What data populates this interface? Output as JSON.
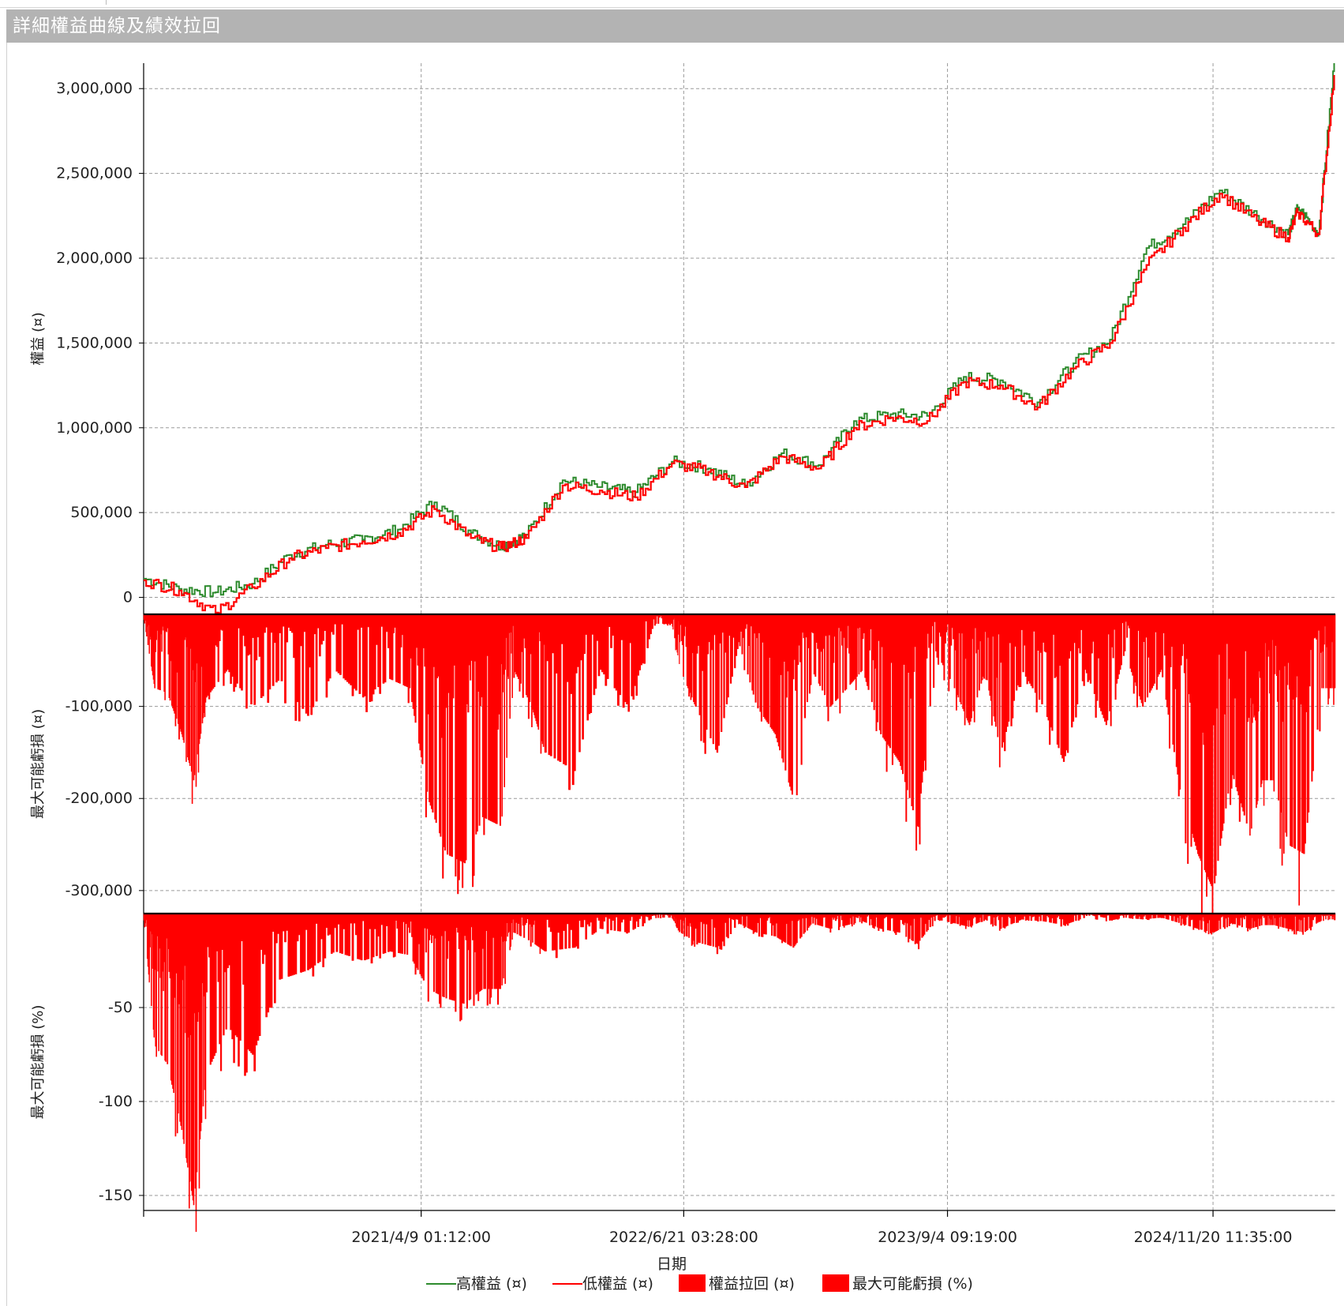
{
  "window": {
    "title": "詳細權益曲線及績效拉回"
  },
  "colors": {
    "high_equity": "#2e8b2e",
    "low_equity": "#ff0000",
    "drawdown_fill": "#ff0000",
    "grid": "#9a9a9a",
    "title_bg": "#b3b3b3"
  },
  "chart_data": [
    {
      "type": "line",
      "panel": "equity",
      "ylabel": "權益 (¤)",
      "ylim": [
        -100000,
        3150000
      ],
      "yticks": [
        0,
        500000,
        1000000,
        1500000,
        2000000,
        2500000,
        3000000
      ],
      "ytick_labels": [
        "0",
        "500,000",
        "1,000,000",
        "1,500,000",
        "2,000,000",
        "2,500,000",
        "3,000,000"
      ],
      "x": [
        "2020-01-02",
        "2020-03-01",
        "2020-05-01",
        "2020-07-01",
        "2020-09-01",
        "2020-11-01",
        "2021-01-01",
        "2021-03-01",
        "2021-05-01",
        "2021-07-01",
        "2021-08-20",
        "2021-10-01",
        "2021-12-01",
        "2022-02-01",
        "2022-04-01",
        "2022-06-01",
        "2022-08-01",
        "2022-10-01",
        "2022-12-01",
        "2023-02-01",
        "2023-04-01",
        "2023-06-01",
        "2023-08-01",
        "2023-10-01",
        "2023-12-01",
        "2024-02-01",
        "2024-04-01",
        "2024-06-01",
        "2024-08-01",
        "2024-10-01",
        "2024-12-01",
        "2025-02-01",
        "2025-03-25",
        "2025-04-10",
        "2025-05-15",
        "2025-06-10"
      ],
      "series": [
        {
          "name": "高權益 (¤)",
          "values": [
            110000,
            50000,
            30000,
            80000,
            250000,
            310000,
            340000,
            400000,
            560000,
            380000,
            300000,
            370000,
            690000,
            650000,
            620000,
            800000,
            760000,
            660000,
            850000,
            780000,
            1040000,
            1080000,
            1070000,
            1300000,
            1280000,
            1150000,
            1380000,
            1520000,
            2060000,
            2200000,
            2400000,
            2250000,
            2140000,
            2300000,
            2150000,
            3150000
          ]
        },
        {
          "name": "低權益 (¤)",
          "values": [
            100000,
            40000,
            -90000,
            60000,
            230000,
            290000,
            330000,
            380000,
            520000,
            350000,
            290000,
            350000,
            660000,
            630000,
            590000,
            790000,
            740000,
            650000,
            830000,
            760000,
            1000000,
            1060000,
            1040000,
            1270000,
            1250000,
            1120000,
            1350000,
            1500000,
            1960000,
            2180000,
            2380000,
            2220000,
            2120000,
            2270000,
            2140000,
            3080000
          ]
        }
      ]
    },
    {
      "type": "area",
      "panel": "drawdown",
      "ylabel": "最大可能虧損 (¤)",
      "ylim": [
        -325000,
        0
      ],
      "yticks": [
        -100000,
        -200000,
        -300000
      ],
      "ytick_labels": [
        "-100,000",
        "-200,000",
        "-300,000"
      ],
      "x": [
        "2020-01-02",
        "2020-01-20",
        "2020-02-10",
        "2020-03-05",
        "2020-03-25",
        "2020-04-15",
        "2020-05-20",
        "2020-07-01",
        "2020-08-15",
        "2020-10-01",
        "2020-11-15",
        "2021-01-01",
        "2021-02-15",
        "2021-03-20",
        "2021-04-20",
        "2021-05-20",
        "2021-06-20",
        "2021-07-20",
        "2021-08-20",
        "2021-09-10",
        "2021-10-10",
        "2021-11-01",
        "2021-12-20",
        "2022-02-01",
        "2022-03-20",
        "2022-05-01",
        "2022-06-01",
        "2022-06-15",
        "2022-07-10",
        "2022-08-15",
        "2022-09-20",
        "2022-10-20",
        "2022-11-20",
        "2022-12-20",
        "2023-01-20",
        "2023-02-20",
        "2023-03-20",
        "2023-04-15",
        "2023-05-15",
        "2023-06-15",
        "2023-07-15",
        "2023-08-15",
        "2023-09-15",
        "2023-10-10",
        "2023-11-05",
        "2023-12-01",
        "2024-01-05",
        "2024-02-10",
        "2024-03-15",
        "2024-04-20",
        "2024-05-25",
        "2024-06-25",
        "2024-07-25",
        "2024-08-25",
        "2024-09-25",
        "2024-10-25",
        "2024-11-20",
        "2024-12-20",
        "2025-01-20",
        "2025-02-10",
        "2025-03-01",
        "2025-03-25",
        "2025-04-20",
        "2025-05-20",
        "2025-06-10"
      ],
      "series": [
        {
          "name": "權益拉回 (¤)",
          "values": [
            -5000,
            -80000,
            -85000,
            -130000,
            -180000,
            -90000,
            -60000,
            -100000,
            -70000,
            -110000,
            -60000,
            -90000,
            -70000,
            -80000,
            -200000,
            -260000,
            -270000,
            -220000,
            -230000,
            -60000,
            -100000,
            -150000,
            -170000,
            -60000,
            -100000,
            -10000,
            -10000,
            -60000,
            -100000,
            -150000,
            -30000,
            -100000,
            -130000,
            -200000,
            -60000,
            -100000,
            -80000,
            -60000,
            -130000,
            -160000,
            -230000,
            -40000,
            -80000,
            -120000,
            -60000,
            -150000,
            -60000,
            -100000,
            -160000,
            -60000,
            -120000,
            -40000,
            -100000,
            -60000,
            -190000,
            -260000,
            -300000,
            -170000,
            -240000,
            -180000,
            -180000,
            -250000,
            -260000,
            -80000,
            -80000
          ]
        }
      ]
    },
    {
      "type": "area",
      "panel": "drawdown_pct",
      "ylabel": "最大可能虧損 (%)",
      "ylim": [
        -158,
        0
      ],
      "yticks": [
        -50,
        -100,
        -150
      ],
      "ytick_labels": [
        "-50",
        "-100",
        "-150"
      ],
      "x": [
        "2020-01-02",
        "2020-01-20",
        "2020-02-10",
        "2020-03-05",
        "2020-03-25",
        "2020-04-15",
        "2020-05-20",
        "2020-07-01",
        "2020-08-15",
        "2020-10-01",
        "2020-11-15",
        "2021-01-01",
        "2021-02-15",
        "2021-03-20",
        "2021-04-20",
        "2021-05-20",
        "2021-06-20",
        "2021-07-20",
        "2021-08-20",
        "2021-09-10",
        "2021-10-10",
        "2021-11-01",
        "2021-12-20",
        "2022-02-01",
        "2022-03-20",
        "2022-05-01",
        "2022-06-01",
        "2022-06-15",
        "2022-07-10",
        "2022-08-15",
        "2022-09-20",
        "2022-10-20",
        "2022-11-20",
        "2022-12-20",
        "2023-01-20",
        "2023-02-20",
        "2023-03-20",
        "2023-04-15",
        "2023-05-15",
        "2023-06-15",
        "2023-07-15",
        "2023-08-15",
        "2023-09-15",
        "2023-10-10",
        "2023-11-05",
        "2023-12-01",
        "2024-01-05",
        "2024-02-10",
        "2024-03-15",
        "2024-04-20",
        "2024-05-25",
        "2024-06-25",
        "2024-07-25",
        "2024-08-25",
        "2024-09-25",
        "2024-10-25",
        "2024-11-20",
        "2024-12-20",
        "2025-01-20",
        "2025-02-10",
        "2025-03-01",
        "2025-03-25",
        "2025-04-20",
        "2025-05-20",
        "2025-06-10"
      ],
      "series": [
        {
          "name": "最大可能虧損 (%)",
          "values": [
            -3,
            -70,
            -80,
            -115,
            -155,
            -85,
            -60,
            -75,
            -35,
            -30,
            -20,
            -25,
            -20,
            -22,
            -40,
            -45,
            -48,
            -40,
            -40,
            -10,
            -15,
            -20,
            -18,
            -8,
            -10,
            -2,
            -2,
            -10,
            -15,
            -18,
            -5,
            -10,
            -12,
            -18,
            -5,
            -8,
            -6,
            -4,
            -8,
            -10,
            -16,
            -3,
            -5,
            -7,
            -3,
            -8,
            -3,
            -4,
            -6,
            -2,
            -4,
            -2,
            -3,
            -2,
            -5,
            -8,
            -10,
            -5,
            -8,
            -6,
            -6,
            -8,
            -10,
            -3,
            -3
          ]
        }
      ]
    }
  ],
  "axis": {
    "xlabel": "日期",
    "xlim": [
      "2020-01-02",
      "2025-06-12"
    ],
    "xticks": [
      "2020-01-02",
      "2021-04-09",
      "2022-06-21",
      "2023-09-04",
      "2024-11-20"
    ],
    "xtick_labels": [
      "",
      "2021/4/9 01:12:00",
      "2022/6/21 03:28:00",
      "2023/9/4 09:19:00",
      "2024/11/20 11:35:00"
    ]
  },
  "legend": {
    "placement": "bottom-center",
    "items": [
      {
        "label": "高權益 (¤)",
        "kind": "line",
        "color": "#2e8b2e"
      },
      {
        "label": "低權益 (¤)",
        "kind": "line",
        "color": "#ff0000"
      },
      {
        "label": "權益拉回 (¤)",
        "kind": "box",
        "color": "#ff0000"
      },
      {
        "label": "最大可能虧損 (%)",
        "kind": "box",
        "color": "#ff0000"
      }
    ]
  }
}
